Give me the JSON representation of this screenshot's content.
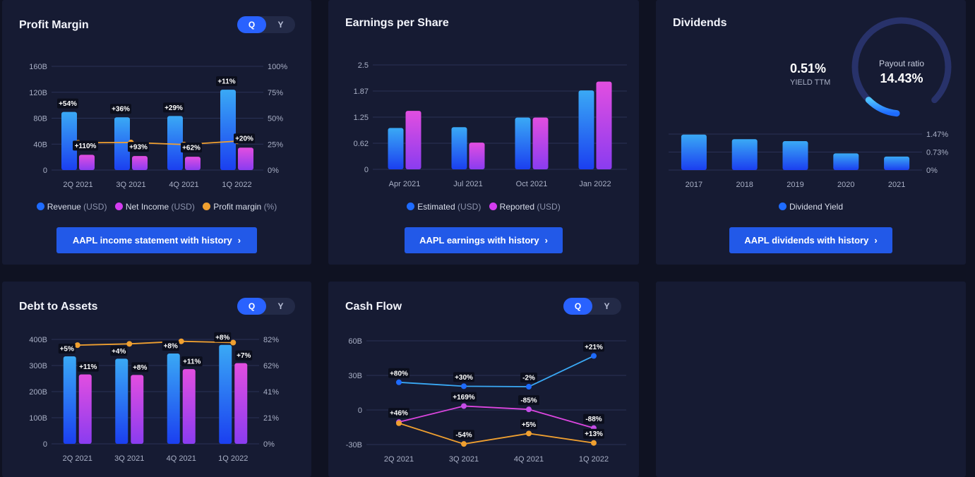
{
  "colors": {
    "revenue": "#1e6bff",
    "income": "#d33cf0",
    "margin": "#f0a030",
    "estimated": "#1e6bff",
    "reported": "#d33cf0",
    "dividend": "#1e6bff",
    "line_blue": "#3aa9f5",
    "line_pink": "#dd46e0",
    "line_orange": "#f0a030"
  },
  "cards": {
    "profit": {
      "title": "Profit Margin",
      "toggle": [
        "Q",
        "Y"
      ],
      "legend": [
        {
          "label": "Revenue",
          "unit": "(USD)"
        },
        {
          "label": "Net Income",
          "unit": "(USD)"
        },
        {
          "label": "Profit margin",
          "unit": "(%)"
        }
      ],
      "button": "AAPL income statement with history"
    },
    "eps": {
      "title": "Earnings per Share",
      "legend": [
        {
          "label": "Estimated",
          "unit": "(USD)"
        },
        {
          "label": "Reported",
          "unit": "(USD)"
        }
      ],
      "button": "AAPL earnings with history"
    },
    "dividends": {
      "title": "Dividends",
      "yield_value": "0.51%",
      "yield_label": "YIELD TTM",
      "payout_label": "Payout ratio",
      "payout_value": "14.43%",
      "legend": [
        {
          "label": "Dividend Yield",
          "unit": ""
        }
      ],
      "button": "AAPL dividends with history"
    },
    "debt": {
      "title": "Debt to Assets",
      "toggle": [
        "Q",
        "Y"
      ]
    },
    "cashflow": {
      "title": "Cash Flow",
      "toggle": [
        "Q",
        "Y"
      ]
    }
  },
  "chart_data": [
    {
      "id": "profit",
      "type": "bar",
      "categories": [
        "2Q 2021",
        "3Q 2021",
        "4Q 2021",
        "1Q 2022"
      ],
      "y_ticks": [
        "0",
        "40B",
        "80B",
        "120B",
        "160B"
      ],
      "ylim": [
        0,
        160
      ],
      "y2_ticks": [
        "0%",
        "25%",
        "50%",
        "75%",
        "100%"
      ],
      "y2lim": [
        0,
        100
      ],
      "series": [
        {
          "name": "Revenue",
          "values": [
            89.6,
            81.4,
            83.4,
            123.9
          ],
          "labels": [
            "+54%",
            "+36%",
            "+29%",
            "+11%"
          ]
        },
        {
          "name": "Net Income",
          "values": [
            23.6,
            21.7,
            20.6,
            34.6
          ],
          "labels": [
            "+110%",
            "+93%",
            "+62%",
            "+20%"
          ]
        },
        {
          "name": "Profit margin",
          "type": "line",
          "axis": "right",
          "values": [
            26.3,
            26.6,
            24.6,
            27.9
          ]
        }
      ]
    },
    {
      "id": "eps",
      "type": "bar",
      "categories": [
        "Apr 2021",
        "Jul 2021",
        "Oct 2021",
        "Jan 2022"
      ],
      "y_ticks": [
        "0",
        "0.62",
        "1.25",
        "1.87",
        "2.5"
      ],
      "ylim": [
        0,
        2.5
      ],
      "series": [
        {
          "name": "Estimated",
          "values": [
            0.99,
            1.01,
            1.24,
            1.89
          ]
        },
        {
          "name": "Reported",
          "values": [
            1.4,
            0.64,
            1.24,
            2.1
          ]
        }
      ]
    },
    {
      "id": "dividends",
      "type": "bar",
      "categories": [
        "2017",
        "2018",
        "2019",
        "2020",
        "2021"
      ],
      "y2_ticks": [
        "0%",
        "0.73%",
        "1.47%"
      ],
      "y2lim": [
        0,
        1.47
      ],
      "payout_ratio": 14.43,
      "series": [
        {
          "name": "Dividend Yield",
          "values": [
            1.45,
            1.26,
            1.18,
            0.68,
            0.55
          ]
        }
      ]
    },
    {
      "id": "debt",
      "type": "bar",
      "categories": [
        "2Q 2021",
        "3Q 2021",
        "4Q 2021",
        "1Q 2022"
      ],
      "y_ticks": [
        "0",
        "100B",
        "200B",
        "300B",
        "400B"
      ],
      "ylim": [
        0,
        400
      ],
      "y2_ticks": [
        "0%",
        "21%",
        "41%",
        "62%",
        "82%"
      ],
      "y2lim": [
        0,
        82
      ],
      "series": [
        {
          "values": [
            335,
            326,
            346,
            379
          ],
          "labels": [
            "+5%",
            "+4%",
            "+8%",
            "+8%"
          ]
        },
        {
          "values": [
            266,
            264,
            286,
            309
          ],
          "labels": [
            "+11%",
            "+8%",
            "+11%",
            "+7%"
          ]
        },
        {
          "type": "line",
          "axis": "right",
          "values": [
            77.5,
            78.5,
            80.5,
            79.5
          ]
        }
      ]
    },
    {
      "id": "cashflow",
      "type": "line",
      "categories": [
        "2Q 2021",
        "3Q 2021",
        "4Q 2021",
        "1Q 2022"
      ],
      "y_ticks": [
        "-30B",
        "0",
        "30B",
        "60B"
      ],
      "ylim": [
        -30,
        60
      ],
      "series": [
        {
          "values": [
            24,
            20.6,
            20.2,
            46.9
          ],
          "labels": [
            "+80%",
            "+30%",
            "-2%",
            "+21%"
          ]
        },
        {
          "values": [
            -10.5,
            3.4,
            0.5,
            -15.7
          ],
          "labels": [
            "+46%",
            "+169%",
            "-85%",
            "-88%"
          ]
        },
        {
          "values": [
            -11.5,
            -29.5,
            -20.4,
            -28.6
          ],
          "labels": [
            "",
            "-54%",
            "+5%",
            "+13%"
          ]
        }
      ]
    }
  ]
}
